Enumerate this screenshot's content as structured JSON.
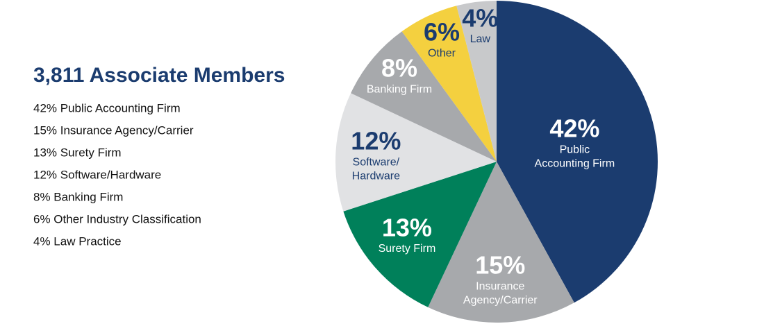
{
  "chart_data": {
    "type": "pie",
    "title": "3,811 Associate Members",
    "list_items": [
      "42% Public Accounting Firm",
      "15% Insurance Agency/Carrier",
      "13% Surety Firm",
      "12% Software/Hardware",
      "8% Banking Firm",
      "6% Other Industry Classification",
      "4% Law Practice"
    ],
    "categories": [
      [
        "Public",
        "Accounting Firm"
      ],
      [
        "Insurance",
        "Agency/Carrier"
      ],
      [
        "Surety Firm"
      ],
      [
        "Software/",
        "Hardware"
      ],
      [
        "Banking Firm"
      ],
      [
        "Other"
      ],
      [
        "Law"
      ]
    ],
    "values": [
      42,
      15,
      13,
      12,
      8,
      6,
      4
    ],
    "value_labels": [
      "42%",
      "15%",
      "13%",
      "12%",
      "8%",
      "6%",
      "4%"
    ],
    "colors": [
      "#1b3c6f",
      "#a7a9ac",
      "#00805a",
      "#e1e2e4",
      "#a7a9ac",
      "#f4d03f",
      "#c8c9cb"
    ]
  }
}
